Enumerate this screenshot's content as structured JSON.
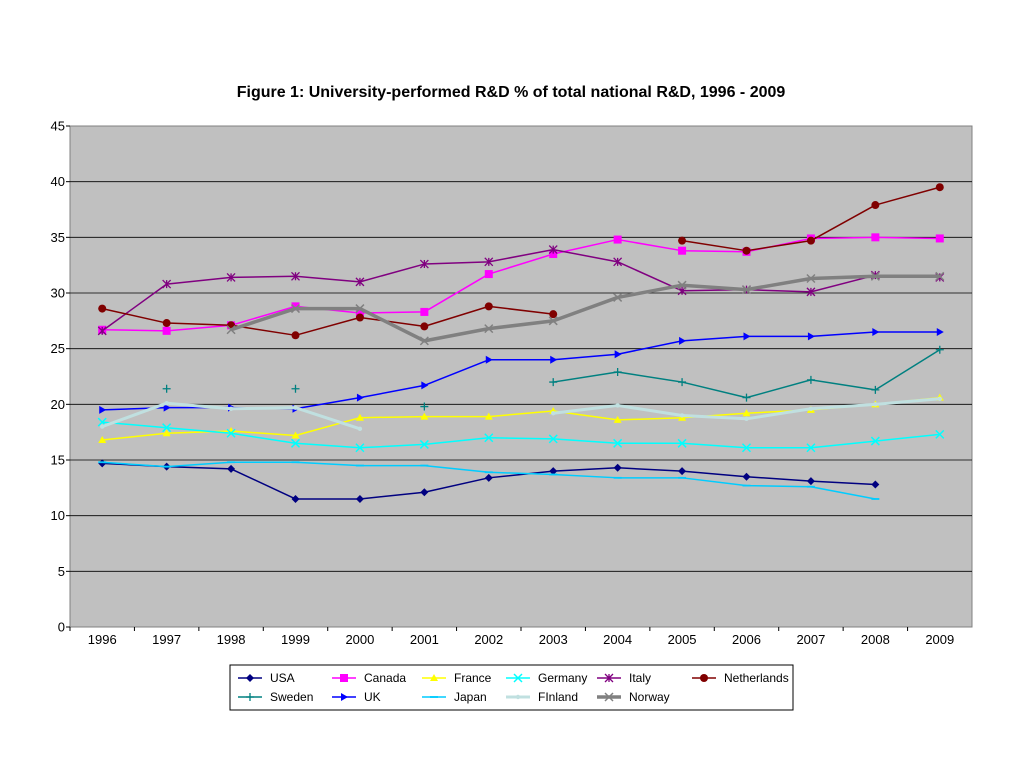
{
  "chart_data": {
    "type": "line",
    "title": "Figure 1:  University-performed R&D % of total national R&D, 1996 - 2009",
    "xlabel": "",
    "ylabel": "",
    "x": [
      "1996",
      "1997",
      "1998",
      "1999",
      "2000",
      "2001",
      "2002",
      "2003",
      "2004",
      "2005",
      "2006",
      "2007",
      "2008",
      "2009"
    ],
    "ylim": [
      0,
      45
    ],
    "yticks": [
      "0",
      "5",
      "10",
      "15",
      "20",
      "25",
      "30",
      "35",
      "40",
      "45"
    ],
    "grid": true,
    "plot_background": "#c0c0c0",
    "legend_position": "bottom",
    "series": [
      {
        "name": "USA",
        "color": "#000080",
        "marker": "diamond",
        "width": 1.5,
        "values": [
          14.7,
          14.4,
          14.2,
          11.5,
          11.5,
          12.1,
          13.4,
          14.0,
          14.3,
          14.0,
          13.5,
          13.1,
          12.8,
          null
        ]
      },
      {
        "name": "Canada",
        "color": "#ff00ff",
        "marker": "square",
        "width": 1.5,
        "values": [
          26.7,
          26.6,
          27.1,
          28.8,
          28.2,
          28.3,
          31.7,
          33.5,
          34.8,
          33.8,
          33.7,
          34.9,
          35.0,
          34.9
        ]
      },
      {
        "name": "France",
        "color": "#ffff00",
        "marker": "triangle",
        "width": 1.5,
        "values": [
          16.8,
          17.4,
          17.6,
          17.2,
          18.8,
          18.9,
          18.9,
          19.4,
          18.6,
          18.8,
          19.2,
          19.5,
          20.0,
          20.6
        ]
      },
      {
        "name": "Germany",
        "color": "#00ffff",
        "marker": "x",
        "width": 1.5,
        "values": [
          18.4,
          17.9,
          17.4,
          16.5,
          16.1,
          16.4,
          17.0,
          16.9,
          16.5,
          16.5,
          16.1,
          16.1,
          16.7,
          17.3
        ]
      },
      {
        "name": "Italy",
        "color": "#800080",
        "marker": "star",
        "width": 1.5,
        "values": [
          26.6,
          30.8,
          31.4,
          31.5,
          31.0,
          32.6,
          32.8,
          33.9,
          32.8,
          30.2,
          30.3,
          30.1,
          31.6,
          31.4
        ]
      },
      {
        "name": "Netherlands",
        "color": "#800000",
        "marker": "circle",
        "width": 1.5,
        "values": [
          28.6,
          27.3,
          27.1,
          26.2,
          27.8,
          27.0,
          28.8,
          28.1,
          null,
          34.7,
          33.8,
          34.7,
          37.9,
          39.5
        ]
      },
      {
        "name": "Sweden",
        "color": "#008080",
        "marker": "plus",
        "width": 1.5,
        "values": [
          null,
          21.4,
          null,
          21.4,
          null,
          19.8,
          null,
          22.0,
          22.9,
          22.0,
          20.6,
          22.2,
          21.3,
          24.9
        ]
      },
      {
        "name": "UK",
        "color": "#0000ff",
        "marker": "triangle-right",
        "width": 1.5,
        "values": [
          19.5,
          19.7,
          19.7,
          19.6,
          20.6,
          21.7,
          24.0,
          24.0,
          24.5,
          25.7,
          26.1,
          26.1,
          26.5,
          26.5
        ]
      },
      {
        "name": "Japan",
        "color": "#00ccff",
        "marker": "dash",
        "width": 1.5,
        "values": [
          14.8,
          14.4,
          14.8,
          14.8,
          14.5,
          14.5,
          13.9,
          13.7,
          13.4,
          13.4,
          12.7,
          12.6,
          11.5,
          null
        ]
      },
      {
        "name": "FInland",
        "color": "#c0e0e0",
        "marker": "dot",
        "width": 3,
        "values": [
          18.0,
          20.1,
          19.6,
          19.7,
          17.8,
          null,
          null,
          19.2,
          19.9,
          19.0,
          18.7,
          19.6,
          20.0,
          20.5
        ]
      },
      {
        "name": "Norway",
        "color": "#808080",
        "marker": "x",
        "width": 3.5,
        "values": [
          null,
          null,
          26.7,
          28.6,
          28.6,
          25.7,
          26.8,
          27.5,
          29.6,
          30.7,
          30.3,
          31.3,
          31.5,
          31.5
        ]
      }
    ]
  }
}
